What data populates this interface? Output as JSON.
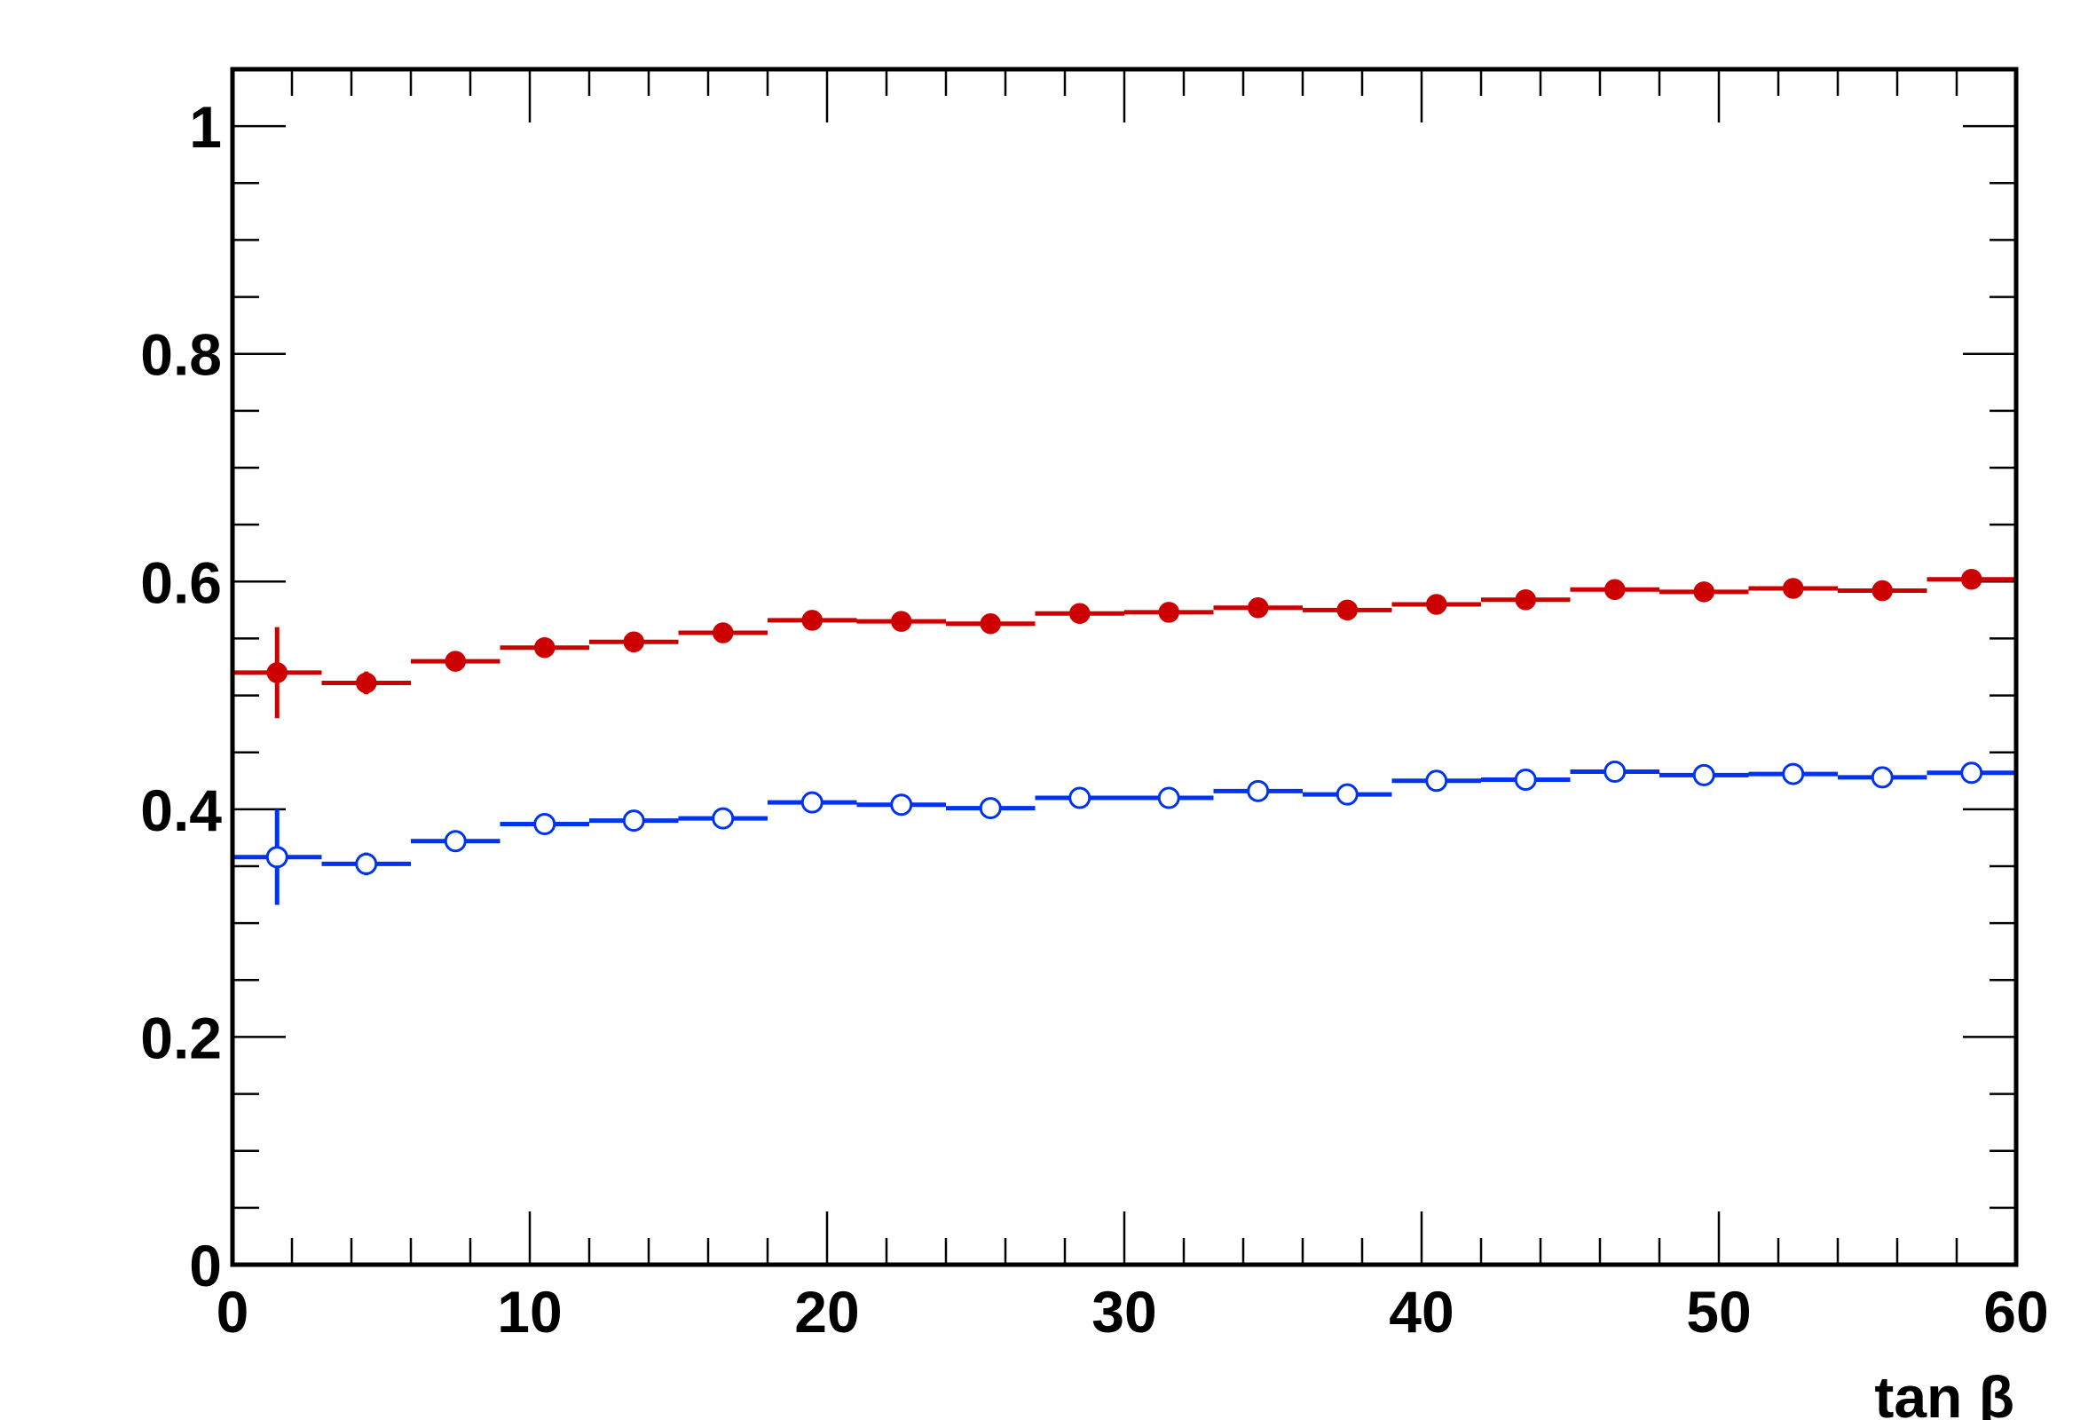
{
  "chart_data": {
    "type": "scatter",
    "title": "",
    "xlabel": "tan β",
    "ylabel": "",
    "xlim": [
      0,
      60
    ],
    "ylim": [
      0,
      1.05
    ],
    "x_ticks": [
      0,
      10,
      20,
      30,
      40,
      50,
      60
    ],
    "x_tick_labels": [
      "0",
      "10",
      "20",
      "30",
      "40",
      "50",
      "60"
    ],
    "y_ticks": [
      0,
      0.2,
      0.4,
      0.6,
      0.8,
      1
    ],
    "y_tick_labels": [
      "0",
      "0.2",
      "0.4",
      "0.6",
      "0.8",
      "1"
    ],
    "grid": false,
    "bin_width": 3,
    "x": [
      1.5,
      4.5,
      7.5,
      10.5,
      13.5,
      16.5,
      19.5,
      22.5,
      25.5,
      28.5,
      31.5,
      34.5,
      37.5,
      40.5,
      43.5,
      46.5,
      49.5,
      52.5,
      55.5,
      58.5
    ],
    "series": [
      {
        "marker": "filled-circle",
        "color": "#cc0000",
        "values": [
          0.52,
          0.511,
          0.53,
          0.542,
          0.547,
          0.555,
          0.566,
          0.565,
          0.563,
          0.572,
          0.573,
          0.577,
          0.575,
          0.58,
          0.584,
          0.593,
          0.591,
          0.594,
          0.592,
          0.602
        ],
        "errors": [
          0.04,
          0.01,
          0.007,
          0.006,
          0.005,
          0.005,
          0.005,
          0.005,
          0.005,
          0.005,
          0.005,
          0.005,
          0.005,
          0.005,
          0.005,
          0.005,
          0.005,
          0.005,
          0.005,
          0.005
        ]
      },
      {
        "marker": "open-circle",
        "color": "#0033ee",
        "values": [
          0.358,
          0.352,
          0.372,
          0.387,
          0.39,
          0.392,
          0.406,
          0.404,
          0.401,
          0.41,
          0.41,
          0.416,
          0.413,
          0.425,
          0.426,
          0.433,
          0.43,
          0.431,
          0.428,
          0.432
        ],
        "errors": [
          0.042,
          0.01,
          0.007,
          0.006,
          0.005,
          0.005,
          0.005,
          0.005,
          0.005,
          0.005,
          0.005,
          0.005,
          0.005,
          0.005,
          0.005,
          0.005,
          0.005,
          0.005,
          0.005,
          0.005
        ]
      }
    ]
  }
}
